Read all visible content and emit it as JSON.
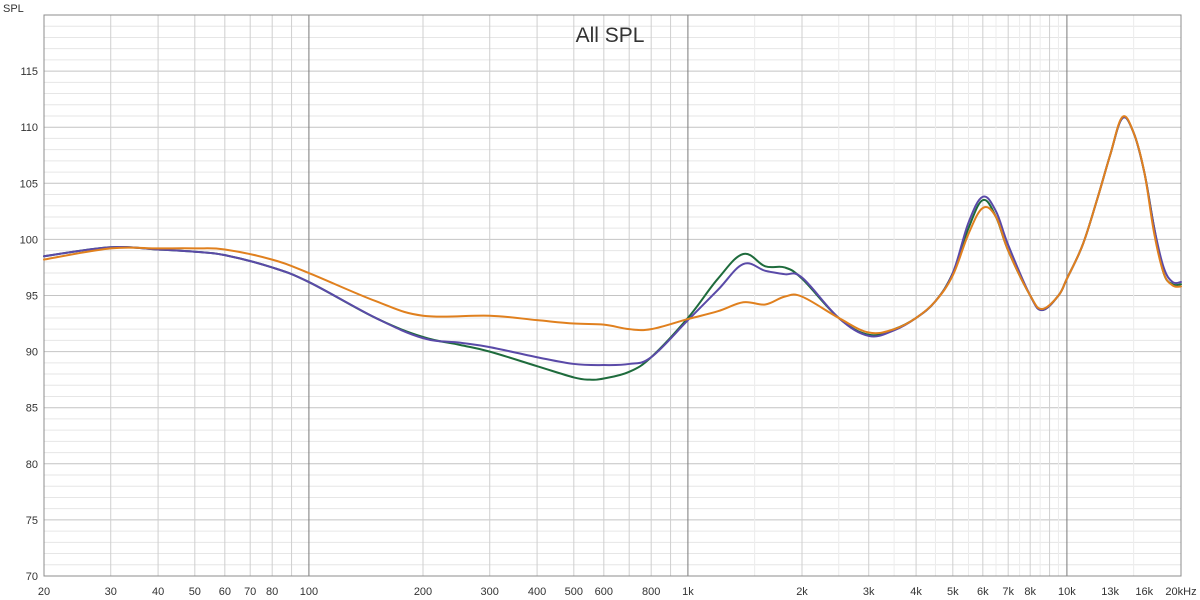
{
  "chart_data": {
    "type": "line",
    "title": "All SPL",
    "ylabel": "SPL",
    "xscale": "log",
    "xlim": [
      20,
      20000
    ],
    "ylim": [
      70,
      120
    ],
    "grid": true,
    "legend": "none",
    "x_ticks": [
      {
        "value": 20,
        "label": "20"
      },
      {
        "value": 30,
        "label": "30"
      },
      {
        "value": 40,
        "label": "40"
      },
      {
        "value": 50,
        "label": "50"
      },
      {
        "value": 60,
        "label": "60"
      },
      {
        "value": 70,
        "label": "70"
      },
      {
        "value": 80,
        "label": "80"
      },
      {
        "value": 100,
        "label": "100"
      },
      {
        "value": 200,
        "label": "200"
      },
      {
        "value": 300,
        "label": "300"
      },
      {
        "value": 400,
        "label": "400"
      },
      {
        "value": 500,
        "label": "500"
      },
      {
        "value": 600,
        "label": "600"
      },
      {
        "value": 800,
        "label": "800"
      },
      {
        "value": 1000,
        "label": "1k"
      },
      {
        "value": 2000,
        "label": "2k"
      },
      {
        "value": 3000,
        "label": "3k"
      },
      {
        "value": 4000,
        "label": "4k"
      },
      {
        "value": 5000,
        "label": "5k"
      },
      {
        "value": 6000,
        "label": "6k"
      },
      {
        "value": 7000,
        "label": "7k"
      },
      {
        "value": 8000,
        "label": "8k"
      },
      {
        "value": 10000,
        "label": "10k"
      },
      {
        "value": 13000,
        "label": "13k"
      },
      {
        "value": 16000,
        "label": "16k"
      },
      {
        "value": 20000,
        "label": "20kHz"
      }
    ],
    "y_ticks": [
      {
        "value": 70,
        "label": "70"
      },
      {
        "value": 75,
        "label": "75"
      },
      {
        "value": 80,
        "label": "80"
      },
      {
        "value": 85,
        "label": "85"
      },
      {
        "value": 90,
        "label": "90"
      },
      {
        "value": 95,
        "label": "95"
      },
      {
        "value": 100,
        "label": "100"
      },
      {
        "value": 105,
        "label": "105"
      },
      {
        "value": 110,
        "label": "110"
      },
      {
        "value": 115,
        "label": "115"
      }
    ],
    "series": [
      {
        "color": "#1e6b3c",
        "points": [
          [
            20,
            98.5
          ],
          [
            30,
            99.3
          ],
          [
            40,
            99.1
          ],
          [
            50,
            98.9
          ],
          [
            60,
            98.6
          ],
          [
            80,
            97.5
          ],
          [
            100,
            96.2
          ],
          [
            150,
            93.0
          ],
          [
            200,
            91.3
          ],
          [
            250,
            90.6
          ],
          [
            300,
            90.0
          ],
          [
            400,
            88.7
          ],
          [
            500,
            87.7
          ],
          [
            550,
            87.5
          ],
          [
            600,
            87.6
          ],
          [
            700,
            88.2
          ],
          [
            800,
            89.5
          ],
          [
            1000,
            93.0
          ],
          [
            1200,
            96.5
          ],
          [
            1400,
            98.7
          ],
          [
            1600,
            97.6
          ],
          [
            1800,
            97.5
          ],
          [
            2000,
            96.5
          ],
          [
            2500,
            93.0
          ],
          [
            3000,
            91.5
          ],
          [
            3500,
            92.0
          ],
          [
            4000,
            93.0
          ],
          [
            4500,
            94.5
          ],
          [
            5000,
            97.0
          ],
          [
            5500,
            101.0
          ],
          [
            6000,
            103.5
          ],
          [
            6500,
            102.0
          ],
          [
            7000,
            99.0
          ],
          [
            8000,
            95.0
          ],
          [
            8600,
            93.7
          ],
          [
            9500,
            95.0
          ],
          [
            10000,
            96.5
          ],
          [
            11000,
            99.5
          ],
          [
            12000,
            103.5
          ],
          [
            13000,
            107.5
          ],
          [
            14000,
            110.8
          ],
          [
            15000,
            109.5
          ],
          [
            16000,
            106.0
          ],
          [
            17000,
            101.0
          ],
          [
            18000,
            97.0
          ],
          [
            19000,
            96.0
          ],
          [
            20000,
            96.0
          ]
        ]
      },
      {
        "color": "#5a4aa8",
        "points": [
          [
            20,
            98.5
          ],
          [
            30,
            99.3
          ],
          [
            40,
            99.1
          ],
          [
            50,
            98.9
          ],
          [
            60,
            98.6
          ],
          [
            80,
            97.5
          ],
          [
            100,
            96.2
          ],
          [
            150,
            93.0
          ],
          [
            200,
            91.2
          ],
          [
            250,
            90.8
          ],
          [
            300,
            90.4
          ],
          [
            400,
            89.5
          ],
          [
            500,
            88.9
          ],
          [
            600,
            88.8
          ],
          [
            700,
            88.9
          ],
          [
            800,
            89.5
          ],
          [
            1000,
            92.8
          ],
          [
            1200,
            95.5
          ],
          [
            1400,
            97.8
          ],
          [
            1600,
            97.2
          ],
          [
            1800,
            96.9
          ],
          [
            2000,
            96.6
          ],
          [
            2500,
            93.0
          ],
          [
            3000,
            91.4
          ],
          [
            3500,
            91.9
          ],
          [
            4000,
            93.0
          ],
          [
            4500,
            94.5
          ],
          [
            5000,
            97.0
          ],
          [
            5500,
            101.5
          ],
          [
            6000,
            103.8
          ],
          [
            6500,
            102.5
          ],
          [
            7000,
            99.5
          ],
          [
            8000,
            95.0
          ],
          [
            8600,
            93.7
          ],
          [
            9500,
            95.0
          ],
          [
            10000,
            96.5
          ],
          [
            11000,
            99.5
          ],
          [
            12000,
            103.5
          ],
          [
            13000,
            107.5
          ],
          [
            14000,
            110.8
          ],
          [
            15000,
            109.5
          ],
          [
            16000,
            106.0
          ],
          [
            17000,
            101.0
          ],
          [
            18000,
            97.5
          ],
          [
            19000,
            96.2
          ],
          [
            20000,
            96.2
          ]
        ]
      },
      {
        "color": "#e0801e",
        "points": [
          [
            20,
            98.2
          ],
          [
            30,
            99.2
          ],
          [
            40,
            99.2
          ],
          [
            50,
            99.2
          ],
          [
            60,
            99.1
          ],
          [
            80,
            98.2
          ],
          [
            100,
            97.0
          ],
          [
            150,
            94.5
          ],
          [
            200,
            93.2
          ],
          [
            300,
            93.2
          ],
          [
            400,
            92.8
          ],
          [
            500,
            92.5
          ],
          [
            600,
            92.4
          ],
          [
            700,
            92.0
          ],
          [
            800,
            92.0
          ],
          [
            1000,
            92.9
          ],
          [
            1200,
            93.6
          ],
          [
            1400,
            94.4
          ],
          [
            1600,
            94.2
          ],
          [
            1800,
            94.9
          ],
          [
            2000,
            94.9
          ],
          [
            2500,
            93.0
          ],
          [
            3000,
            91.7
          ],
          [
            3500,
            92.0
          ],
          [
            4000,
            93.0
          ],
          [
            4500,
            94.5
          ],
          [
            5000,
            96.8
          ],
          [
            5500,
            100.5
          ],
          [
            6000,
            102.8
          ],
          [
            6500,
            102.0
          ],
          [
            7000,
            99.0
          ],
          [
            8000,
            95.0
          ],
          [
            8600,
            93.8
          ],
          [
            9500,
            95.0
          ],
          [
            10000,
            96.5
          ],
          [
            11000,
            99.5
          ],
          [
            12000,
            103.5
          ],
          [
            13000,
            107.5
          ],
          [
            14000,
            110.9
          ],
          [
            15000,
            109.5
          ],
          [
            16000,
            106.0
          ],
          [
            17000,
            100.5
          ],
          [
            18000,
            97.0
          ],
          [
            19000,
            95.9
          ],
          [
            20000,
            95.8
          ]
        ]
      }
    ]
  }
}
